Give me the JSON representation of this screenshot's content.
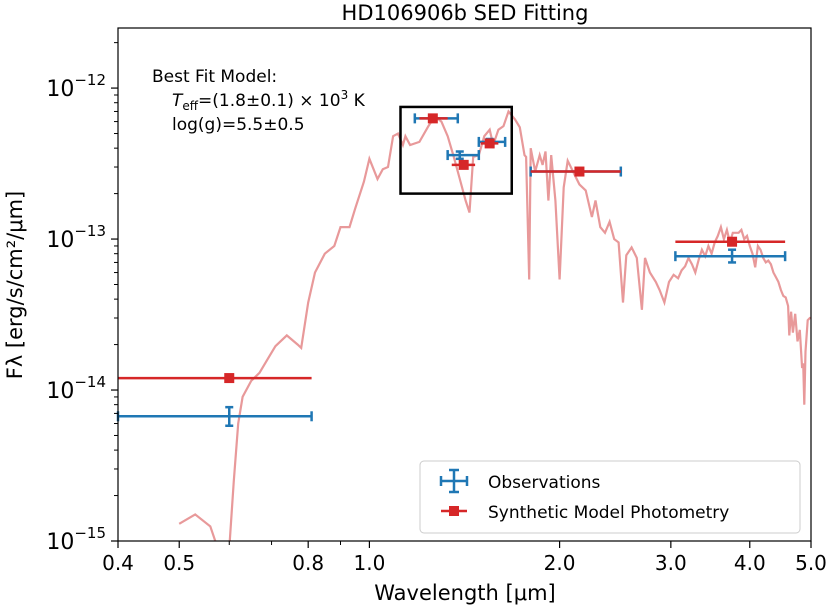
{
  "chart_data": {
    "type": "scatter",
    "title": "HD106906b SED Fitting",
    "xlabel": "Wavelength [μm]",
    "ylabel": "Fλ [erg/s/cm²/μm]",
    "xscale": "log",
    "yscale": "log",
    "xlim": [
      0.4,
      5.0
    ],
    "ylim": [
      1e-15,
      2.5e-12
    ],
    "xticks": [
      {
        "value": 0.4,
        "label": "0.4"
      },
      {
        "value": 0.5,
        "label": "0.5"
      },
      {
        "value": 0.8,
        "label": "0.8"
      },
      {
        "value": 1.0,
        "label": "1.0"
      },
      {
        "value": 2.0,
        "label": "2.0"
      },
      {
        "value": 3.0,
        "label": "3.0"
      },
      {
        "value": 4.0,
        "label": "4.0"
      },
      {
        "value": 5.0,
        "label": "5.0"
      }
    ],
    "yticks": [
      {
        "value": 1e-15,
        "base": "10",
        "exp": "−15"
      },
      {
        "value": 1e-14,
        "base": "10",
        "exp": "−14"
      },
      {
        "value": 1e-13,
        "base": "10",
        "exp": "−13"
      },
      {
        "value": 1e-12,
        "base": "10",
        "exp": "−12"
      }
    ],
    "annotation": {
      "line1": "Best Fit Model:",
      "line2_symbol": "T",
      "line2_sub": "eff",
      "line2_value": "=(1.8±0.1) × 10",
      "line2_exp": "3",
      "line2_unit": " K",
      "line3": "log(g)=5.5±0.5"
    },
    "zoom_box": {
      "x": [
        1.12,
        1.68
      ],
      "y": [
        2e-13,
        7.5e-13
      ]
    },
    "legend": {
      "position": "lower-right",
      "entries": [
        {
          "label": "Observations",
          "color": "#1f77b4",
          "marker": "errorbar"
        },
        {
          "label": "Synthetic Model Photometry",
          "color": "#d62728",
          "marker": "square"
        }
      ]
    },
    "colors": {
      "model": "#e8999a",
      "obs": "#1f77b4",
      "synth": "#d62728"
    },
    "observations": [
      {
        "x": 0.6,
        "xerr": [
          0.4,
          0.81
        ],
        "y": 6.7e-15,
        "yerr": [
          5.8e-15,
          7.7e-15
        ]
      },
      {
        "x": 1.26,
        "xerr": [
          1.18,
          1.38
        ],
        "y": 6.3e-13,
        "yerr": [
          6.1e-13,
          6.5e-13
        ]
      },
      {
        "x": 1.39,
        "xerr": [
          1.33,
          1.49
        ],
        "y": 3.6e-13,
        "yerr": [
          3.4e-13,
          3.8e-13
        ]
      },
      {
        "x": 1.55,
        "xerr": [
          1.49,
          1.64
        ],
        "y": 4.4e-13,
        "yerr": [
          4.2e-13,
          4.6e-13
        ]
      },
      {
        "x": 2.15,
        "xerr": [
          1.8,
          2.5
        ],
        "y": 2.8e-13,
        "yerr": [
          2.7e-13,
          2.9e-13
        ]
      },
      {
        "x": 3.75,
        "xerr": [
          3.05,
          4.55
        ],
        "y": 7.7e-14,
        "yerr": [
          7e-14,
          8.5e-14
        ]
      }
    ],
    "synthetic": [
      {
        "x": 0.6,
        "xerr": [
          0.4,
          0.81
        ],
        "y": 1.2e-14
      },
      {
        "x": 1.26,
        "xerr": [
          1.2,
          1.33
        ],
        "y": 6.3e-13
      },
      {
        "x": 1.41,
        "xerr": [
          1.35,
          1.47
        ],
        "y": 3.1e-13
      },
      {
        "x": 1.55,
        "xerr": [
          1.5,
          1.6
        ],
        "y": 4.3e-13
      },
      {
        "x": 2.15,
        "xerr": [
          1.8,
          2.5
        ],
        "y": 2.8e-13
      },
      {
        "x": 3.75,
        "xerr": [
          3.05,
          4.55
        ],
        "y": 9.6e-14
      }
    ],
    "model_spectrum": [
      [
        0.5,
        1.3e-15
      ],
      [
        0.53,
        1.5e-15
      ],
      [
        0.56,
        1.25e-15
      ],
      [
        0.575,
        9e-16
      ],
      [
        0.6,
        9e-16
      ],
      [
        0.61,
        2.5e-15
      ],
      [
        0.62,
        6e-15
      ],
      [
        0.63,
        9e-15
      ],
      [
        0.65,
        1.15e-14
      ],
      [
        0.67,
        1.3e-14
      ],
      [
        0.69,
        1.6e-14
      ],
      [
        0.71,
        1.95e-14
      ],
      [
        0.74,
        2.3e-14
      ],
      [
        0.77,
        2e-14
      ],
      [
        0.78,
        1.9e-14
      ],
      [
        0.8,
        3.8e-14
      ],
      [
        0.82,
        6e-14
      ],
      [
        0.85,
        8e-14
      ],
      [
        0.88,
        9e-14
      ],
      [
        0.9,
        1.2e-13
      ],
      [
        0.93,
        1.2e-13
      ],
      [
        0.95,
        1.6e-13
      ],
      [
        0.98,
        2.4e-13
      ],
      [
        1.0,
        3.4e-13
      ],
      [
        1.03,
        2.5e-13
      ],
      [
        1.05,
        2.9e-13
      ],
      [
        1.07,
        3e-13
      ],
      [
        1.09,
        4.8e-13
      ],
      [
        1.11,
        5e-13
      ],
      [
        1.13,
        4.2e-13
      ],
      [
        1.14,
        4.8e-13
      ],
      [
        1.16,
        4.2e-13
      ],
      [
        1.2,
        4.4e-13
      ],
      [
        1.24,
        5.6e-13
      ],
      [
        1.27,
        6.5e-13
      ],
      [
        1.3,
        6e-13
      ],
      [
        1.33,
        4.8e-13
      ],
      [
        1.36,
        3.5e-13
      ],
      [
        1.39,
        2.5e-13
      ],
      [
        1.42,
        1.8e-13
      ],
      [
        1.44,
        1.5e-13
      ],
      [
        1.46,
        3.5e-13
      ],
      [
        1.49,
        3.6e-13
      ],
      [
        1.52,
        4.8e-13
      ],
      [
        1.55,
        5.3e-13
      ],
      [
        1.57,
        4.2e-13
      ],
      [
        1.6,
        5.3e-13
      ],
      [
        1.63,
        5.6e-13
      ],
      [
        1.66,
        7e-13
      ],
      [
        1.7,
        6.2e-13
      ],
      [
        1.73,
        5.5e-13
      ],
      [
        1.76,
        3.6e-13
      ],
      [
        1.77,
        3.5e-13
      ],
      [
        1.79,
        5.4e-14
      ],
      [
        1.8,
        4e-13
      ],
      [
        1.83,
        2.8e-13
      ],
      [
        1.86,
        3.6e-13
      ],
      [
        1.88,
        3.1e-13
      ],
      [
        1.9,
        3.8e-13
      ],
      [
        1.92,
        1.8e-13
      ],
      [
        1.94,
        3.6e-13
      ],
      [
        1.97,
        1.8e-13
      ],
      [
        2.0,
        5.4e-14
      ],
      [
        2.03,
        2.2e-13
      ],
      [
        2.06,
        3.3e-13
      ],
      [
        2.1,
        2.8e-13
      ],
      [
        2.15,
        2.3e-13
      ],
      [
        2.2,
        2.1e-13
      ],
      [
        2.25,
        1.4e-13
      ],
      [
        2.28,
        1.8e-13
      ],
      [
        2.32,
        1.2e-13
      ],
      [
        2.36,
        1.1e-13
      ],
      [
        2.4,
        1.3e-13
      ],
      [
        2.44,
        1e-13
      ],
      [
        2.48,
        9.5e-14
      ],
      [
        2.52,
        3.8e-14
      ],
      [
        2.55,
        7.8e-14
      ],
      [
        2.6,
        8.8e-14
      ],
      [
        2.65,
        7.5e-14
      ],
      [
        2.7,
        3.4e-14
      ],
      [
        2.73,
        7.5e-14
      ],
      [
        2.78,
        6e-14
      ],
      [
        2.84,
        5.2e-14
      ],
      [
        2.88,
        4.6e-14
      ],
      [
        2.93,
        3.8e-14
      ],
      [
        2.98,
        5.2e-14
      ],
      [
        3.03,
        5.8e-14
      ],
      [
        3.08,
        5.5e-14
      ],
      [
        3.12,
        6.2e-14
      ],
      [
        3.16,
        6.6e-14
      ],
      [
        3.2,
        7.5e-14
      ],
      [
        3.24,
        6.8e-14
      ],
      [
        3.28,
        6e-14
      ],
      [
        3.32,
        7.3e-14
      ],
      [
        3.36,
        8.5e-14
      ],
      [
        3.4,
        7.7e-14
      ],
      [
        3.44,
        9e-14
      ],
      [
        3.48,
        8e-14
      ],
      [
        3.52,
        9.5e-14
      ],
      [
        3.56,
        1.05e-13
      ],
      [
        3.6,
        1.2e-13
      ],
      [
        3.64,
        1e-13
      ],
      [
        3.68,
        1.15e-13
      ],
      [
        3.72,
        9.5e-14
      ],
      [
        3.76,
        1.1e-13
      ],
      [
        3.8,
        1.1e-13
      ],
      [
        3.84,
        1.1e-13
      ],
      [
        3.88,
        1.15e-13
      ],
      [
        3.92,
        1e-13
      ],
      [
        3.96,
        1.05e-13
      ],
      [
        4.0,
        9e-14
      ],
      [
        4.04,
        8e-14
      ],
      [
        4.08,
        6.5e-14
      ],
      [
        4.12,
        9e-14
      ],
      [
        4.16,
        8.5e-14
      ],
      [
        4.2,
        7.5e-14
      ],
      [
        4.24,
        7e-14
      ],
      [
        4.28,
        7.2e-14
      ],
      [
        4.32,
        6.8e-14
      ],
      [
        4.36,
        6e-14
      ],
      [
        4.4,
        5.6e-14
      ],
      [
        4.44,
        5.2e-14
      ],
      [
        4.48,
        4.6e-14
      ],
      [
        4.52,
        4.2e-14
      ],
      [
        4.56,
        4.1e-14
      ],
      [
        4.6,
        3.6e-14
      ],
      [
        4.62,
        2.3e-14
      ],
      [
        4.65,
        3.3e-14
      ],
      [
        4.68,
        2.4e-14
      ],
      [
        4.72,
        3.2e-14
      ],
      [
        4.76,
        2.1e-14
      ],
      [
        4.8,
        2.5e-14
      ],
      [
        4.84,
        1.4e-14
      ],
      [
        4.86,
        1.5e-14
      ],
      [
        4.88,
        8e-15
      ],
      [
        4.9,
        1.8e-14
      ],
      [
        4.94,
        2.9e-14
      ],
      [
        4.98,
        3e-14
      ],
      [
        5.0,
        3e-14
      ]
    ]
  }
}
